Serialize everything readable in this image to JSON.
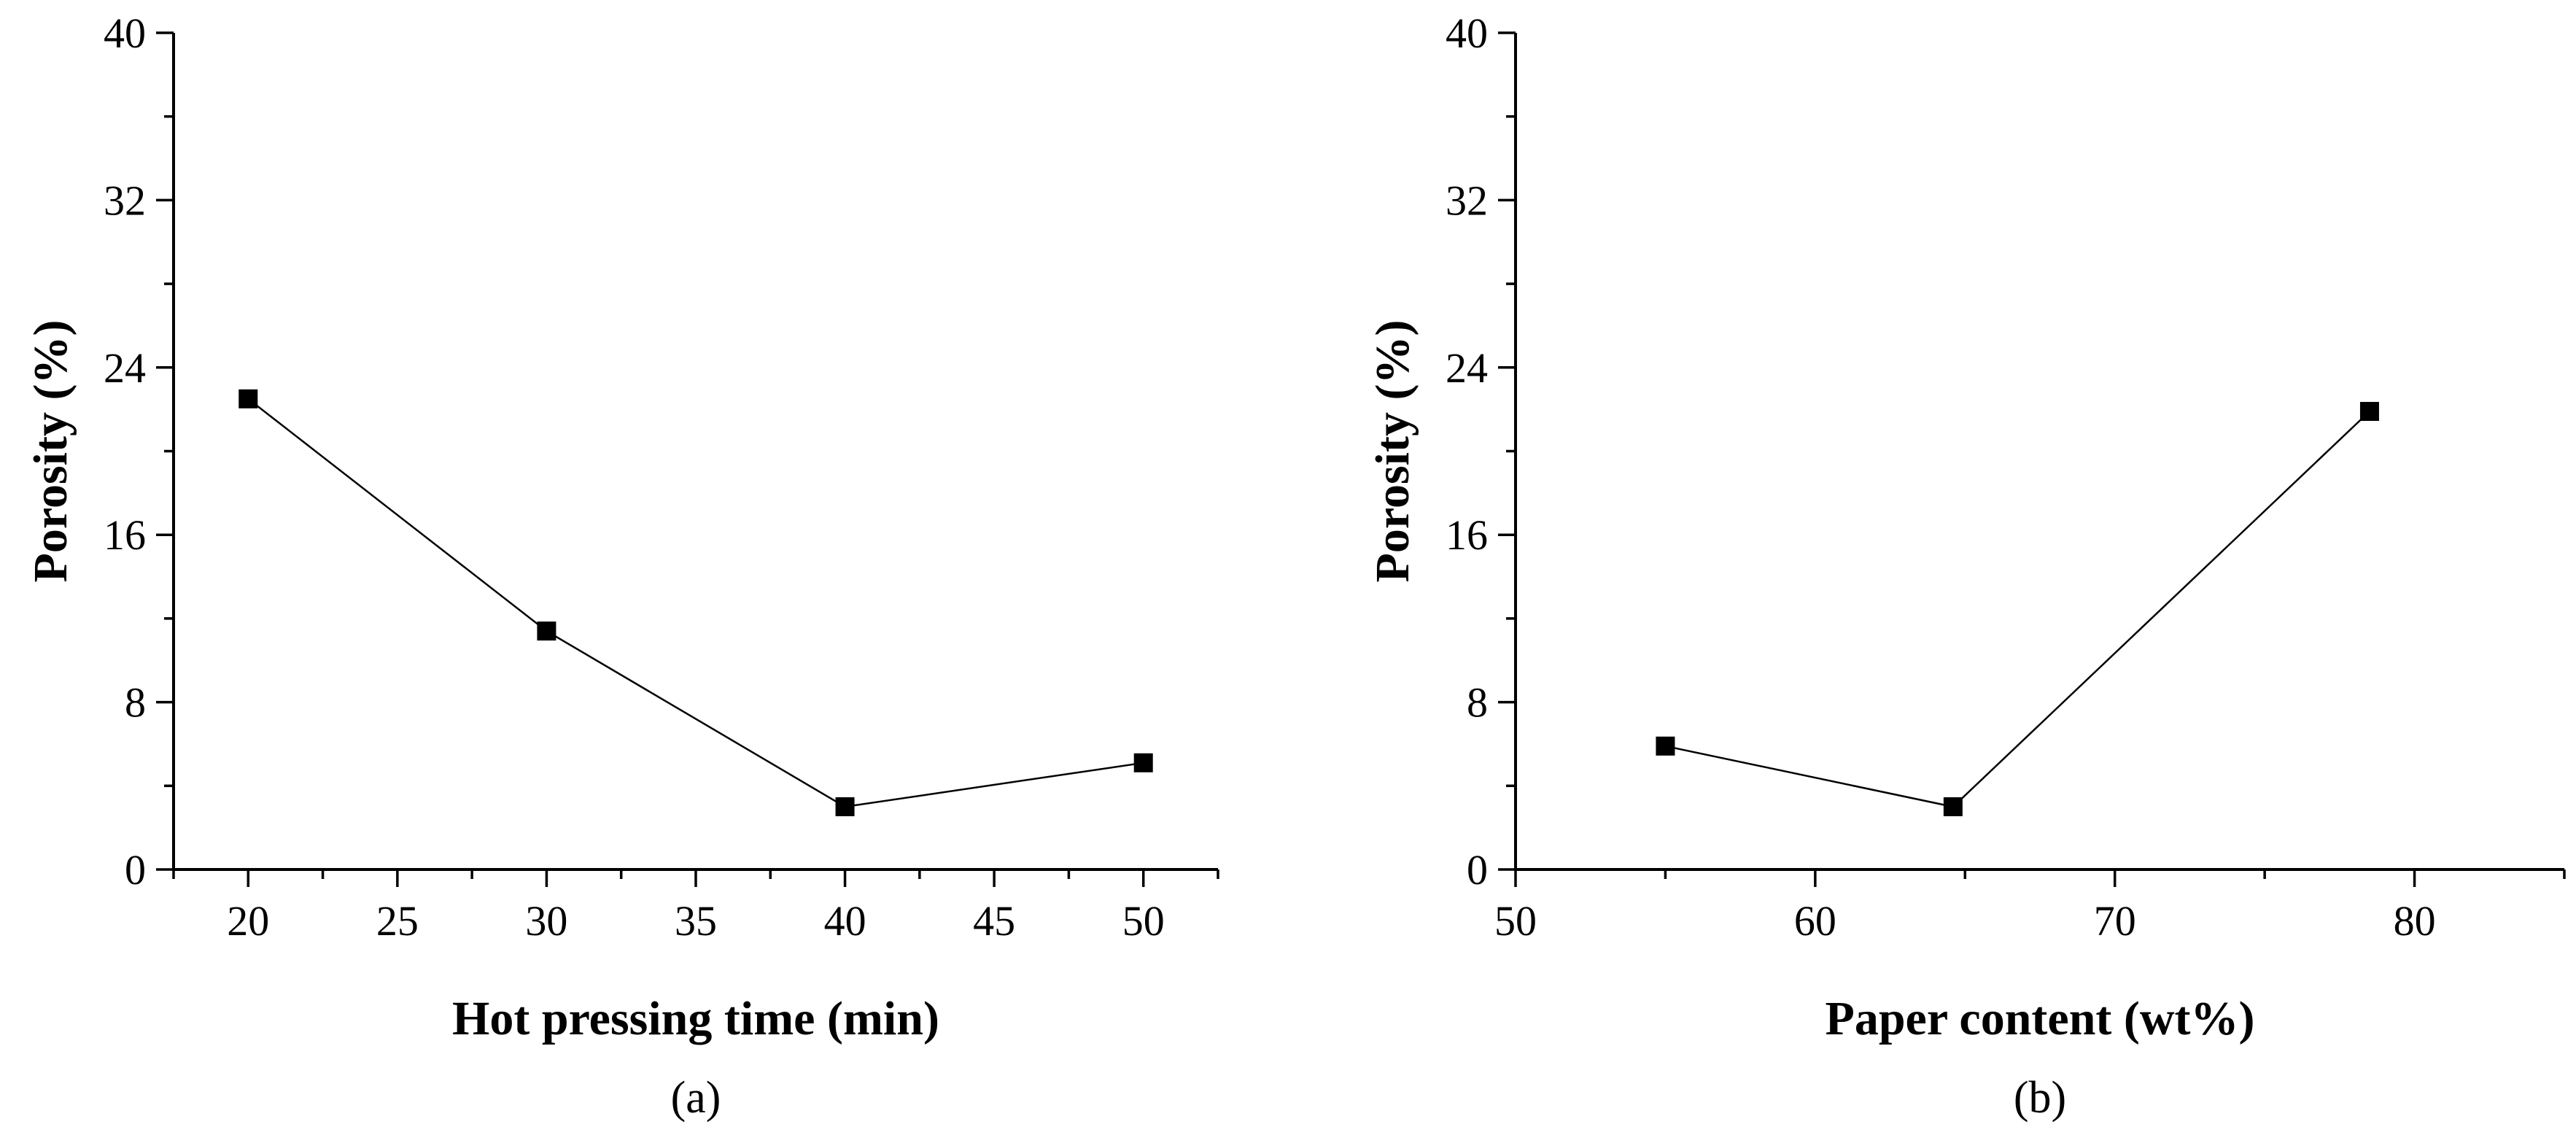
{
  "chart_data": [
    {
      "type": "line",
      "panel_label": "(a)",
      "title": "",
      "xlabel": "Hot pressing time (min)",
      "ylabel": "Porosity (%)",
      "xlim": [
        17.5,
        52.5
      ],
      "ylim": [
        0,
        40
      ],
      "x_ticks": [
        20,
        25,
        30,
        35,
        40,
        45,
        50
      ],
      "x_tick_labels": [
        "20",
        "25",
        "30",
        "35",
        "40",
        "45",
        "50"
      ],
      "x_minor_step": 2.5,
      "y_ticks": [
        0,
        8,
        16,
        24,
        32,
        40
      ],
      "y_tick_labels": [
        "0",
        "8",
        "16",
        "24",
        "32",
        "40"
      ],
      "y_minor_step": 4,
      "grid": false,
      "series": [
        {
          "name": "Porosity",
          "x": [
            20,
            30,
            40,
            50
          ],
          "y": [
            22.5,
            11.4,
            3.0,
            5.1
          ]
        }
      ]
    },
    {
      "type": "line",
      "panel_label": "(b)",
      "title": "",
      "xlabel": "Paper content (wt%)",
      "ylabel": "Porosity (%)",
      "xlim": [
        50,
        85
      ],
      "ylim": [
        0,
        40
      ],
      "x_ticks": [
        50,
        60,
        70,
        80
      ],
      "x_tick_labels": [
        "50",
        "60",
        "70",
        "80"
      ],
      "x_minor_step": 5,
      "y_ticks": [
        0,
        8,
        16,
        24,
        32,
        40
      ],
      "y_tick_labels": [
        "0",
        "8",
        "16",
        "24",
        "32",
        "40"
      ],
      "y_minor_step": 4,
      "grid": false,
      "series": [
        {
          "name": "Porosity",
          "x": [
            55,
            64.6,
            78.5
          ],
          "y": [
            5.9,
            3.0,
            21.9
          ]
        }
      ]
    }
  ]
}
